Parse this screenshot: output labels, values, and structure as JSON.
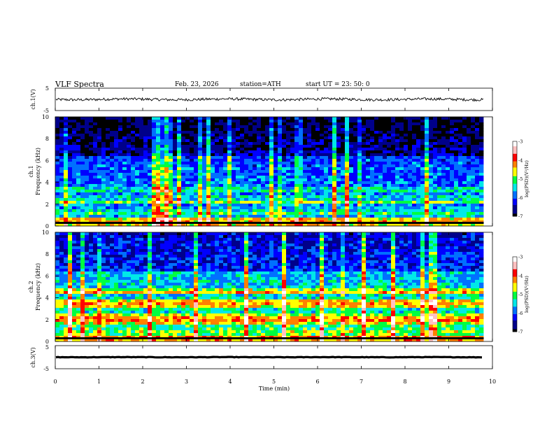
{
  "header": {
    "title": "VLF  Spectra",
    "date": "Feb. 23, 2026",
    "station": "station=ATH",
    "start": "start  UT  =    23: 50: 0"
  },
  "colors": {
    "colormap": [
      "#000000",
      "#00008a",
      "#0000ff",
      "#0070ff",
      "#00e8e8",
      "#00ff40",
      "#ffff00",
      "#ff8000",
      "#ff0000",
      "#ffc0c0",
      "#ffffff"
    ],
    "waveform": "#000000"
  },
  "chart_data": [
    {
      "type": "line",
      "id": "ch1",
      "ylabel": "ch.1(V)",
      "ylim": [
        -5,
        5
      ],
      "yticks": [
        "5",
        "-5"
      ],
      "description_values": {
        "baseline": 0,
        "noise_amplitude": 0.6
      }
    },
    {
      "type": "heatmap",
      "id": "spec1",
      "ylabel": "ch.1\nFrequency  (kHz)",
      "ylabel_top": "ch.1",
      "ylabel_bottom": "Frequency  (kHz)",
      "ylim": [
        0,
        10
      ],
      "yticks": [
        "10",
        "8",
        "6",
        "4",
        "2",
        "0"
      ],
      "colorbar": {
        "label": "log(PSD)(V²/Hz)",
        "range": [
          -7,
          -3
        ],
        "ticks": [
          "-3",
          "-4",
          "-5",
          "-6",
          "-7"
        ]
      },
      "bands_khz": [
        {
          "f": 0.3,
          "level": -4.2
        },
        {
          "f": 0.6,
          "level": -4.4
        },
        {
          "f": 1.2,
          "level": -5.0
        },
        {
          "f": 2.2,
          "level": -4.9
        },
        {
          "f": 2.6,
          "level": -5.2
        },
        {
          "f": 3.3,
          "level": -5.1
        },
        {
          "f": 3.6,
          "level": -5.6
        },
        {
          "f": 5.2,
          "level": -5.8
        }
      ]
    },
    {
      "type": "heatmap",
      "id": "spec2",
      "ylabel": "ch.2\nFrequency  (kHz)",
      "ylabel_top": "ch.2",
      "ylabel_bottom": "Frequency  (kHz)",
      "ylim": [
        0,
        10
      ],
      "yticks": [
        "10",
        "8",
        "6",
        "4",
        "2",
        "0"
      ],
      "colorbar": {
        "label": "log(PSD)(V²/Hz)",
        "range": [
          -7,
          -3
        ],
        "ticks": [
          "-3",
          "-4",
          "-5",
          "-6",
          "-7"
        ]
      },
      "bands_khz": [
        {
          "f": 0.3,
          "level": -4.0
        },
        {
          "f": 0.8,
          "level": -4.6
        },
        {
          "f": 1.9,
          "level": -4.1
        },
        {
          "f": 2.2,
          "level": -4.3
        },
        {
          "f": 3.4,
          "level": -4.2
        },
        {
          "f": 3.7,
          "level": -4.5
        },
        {
          "f": 4.5,
          "level": -4.3
        }
      ]
    },
    {
      "type": "line",
      "id": "ch3",
      "ylabel": "ch.3(V)",
      "ylim": [
        -5,
        5
      ],
      "yticks": [
        "5",
        "-5"
      ],
      "description_values": {
        "baseline": 0,
        "noise_amplitude": 0.1
      }
    }
  ],
  "time_axis": {
    "xlabel": "Time  (min)",
    "xlim": [
      0,
      10
    ],
    "ticks": [
      "0",
      "1",
      "2",
      "3",
      "4",
      "5",
      "6",
      "7",
      "8",
      "9",
      "10"
    ],
    "data_end_min": 9.8
  }
}
